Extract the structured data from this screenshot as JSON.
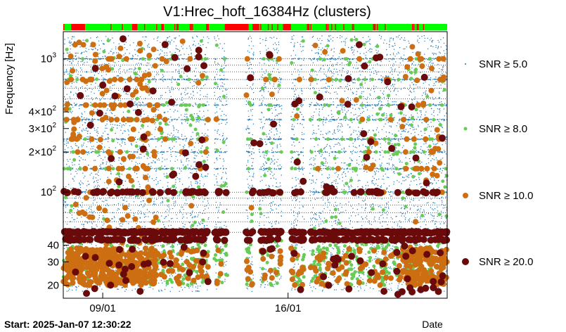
{
  "chart_data": {
    "type": "scatter",
    "title": "V1:Hrec_hoft_16384Hz (clusters)",
    "ylabel": "Frequency [Hz]",
    "xlabel": "Date",
    "yscale": "log",
    "ylim": [
      16,
      1600
    ],
    "xlim_days": [
      0,
      14.5
    ],
    "x_ticks": [
      {
        "label": "09/01",
        "day": 1.49
      },
      {
        "label": "16/01",
        "day": 8.49
      }
    ],
    "y_ticks": [
      {
        "label": "20",
        "value": 20
      },
      {
        "label": "30",
        "value": 30
      },
      {
        "label": "40",
        "value": 40
      },
      {
        "label": "10",
        "exp": "2",
        "value": 100
      },
      {
        "label": "2×10",
        "exp": "2",
        "value": 200
      },
      {
        "label": "3×10",
        "exp": "2",
        "value": 300
      },
      {
        "label": "4×10",
        "exp": "2",
        "value": 400
      },
      {
        "label": "10",
        "exp": "3",
        "value": 1000
      }
    ],
    "grid_lines_hz": [
      50,
      60,
      70,
      80,
      90,
      100,
      500,
      600,
      700,
      800,
      900,
      1000
    ],
    "series": [
      {
        "name": "SNR ≥ 5.0",
        "color": "#1f77b4",
        "marker_r": 0.7,
        "count": 9000
      },
      {
        "name": "SNR ≥ 8.0",
        "color": "#66cc55",
        "marker_r": 2.5,
        "count": 900
      },
      {
        "name": "SNR ≥ 10.0",
        "color": "#cc6e11",
        "marker_r": 4.0,
        "count": 1100
      },
      {
        "name": "SNR ≥ 20.0",
        "color": "#6b0a0a",
        "marker_r": 5.0,
        "count": 700
      }
    ],
    "gaps_days": [
      [
        5.5,
        5.7
      ],
      [
        6.2,
        6.9
      ],
      [
        7.2,
        7.4
      ],
      [
        8.25,
        8.6
      ],
      [
        9.1,
        9.3
      ]
    ],
    "state_bar": {
      "on_color": "#00ff00",
      "off_color": "#ff0000",
      "off_segments_days": [
        [
          0.3,
          0.8
        ],
        [
          2.6,
          2.8
        ],
        [
          3.7,
          3.8
        ],
        [
          5.4,
          5.5
        ],
        [
          6.1,
          7.0
        ],
        [
          7.15,
          7.4
        ],
        [
          8.3,
          8.6
        ],
        [
          9.2,
          9.3
        ],
        [
          11.7,
          11.8
        ]
      ]
    },
    "grid": true,
    "legend_position": "right"
  },
  "footer": {
    "start_label": "Start: 2025-Jan-07 12:30:22",
    "date_label": "Date"
  }
}
